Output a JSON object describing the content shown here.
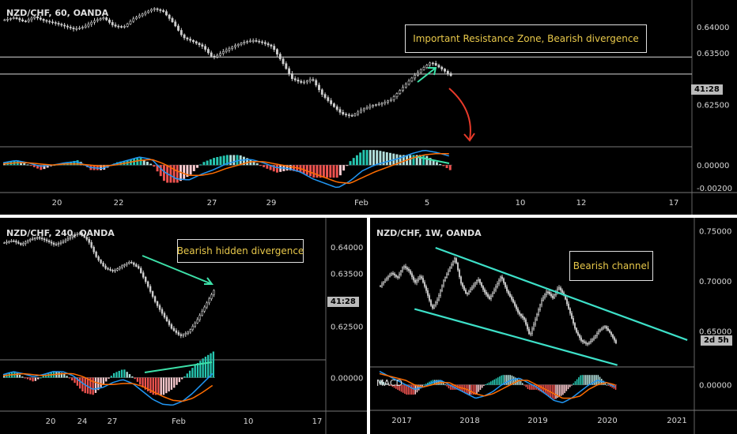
{
  "chart_data": [
    {
      "panel": "top",
      "type": "candlestick",
      "title": "NZD/CHF, 60, OANDA",
      "annotation": "Important Resistance Zone, Bearish divergence",
      "countdown_badge": "41:28",
      "price_ticks": [
        "0.64000",
        "0.63500",
        "0.62500"
      ],
      "macd_ticks": [
        "0.00000",
        "-0.00200"
      ],
      "x_ticks": [
        "20",
        "22",
        "27",
        "29",
        "Feb",
        "5",
        "10",
        "12",
        "17"
      ],
      "price_range": [
        0.617,
        0.644
      ],
      "macd_range": [
        -0.0024,
        0.0016
      ],
      "resistance_zone": [
        0.6342,
        0.6309
      ],
      "close_path": [
        0.6414,
        0.6418,
        0.641,
        0.642,
        0.6412,
        0.6408,
        0.6402,
        0.6396,
        0.64,
        0.6412,
        0.6418,
        0.6402,
        0.64,
        0.6416,
        0.6426,
        0.6436,
        0.643,
        0.6408,
        0.638,
        0.6372,
        0.6362,
        0.634,
        0.6352,
        0.6362,
        0.637,
        0.6374,
        0.637,
        0.6362,
        0.6332,
        0.63,
        0.6292,
        0.63,
        0.627,
        0.625,
        0.6232,
        0.6228,
        0.624,
        0.6248,
        0.6252,
        0.626,
        0.628,
        0.63,
        0.6318,
        0.6332,
        0.632,
        0.6306
      ],
      "macd_path": [
        0.0002,
        0.0004,
        0.0002,
        -0.0001,
        0.0,
        0.0002,
        0.0003,
        -0.0002,
        -0.0003,
        0.0001,
        0.0004,
        0.0007,
        0.0005,
        -0.0006,
        -0.0012,
        -0.0013,
        -0.0008,
        -0.0004,
        0.0001,
        0.0004,
        0.0005,
        0.0002,
        -0.0002,
        -0.0003,
        -0.0006,
        -0.0012,
        -0.0016,
        -0.002,
        -0.0014,
        -0.0005,
        0.0,
        0.0003,
        0.0006,
        0.001,
        0.0013,
        0.0011,
        0.0008
      ],
      "signal_path": [
        0.0001,
        0.0002,
        0.0002,
        0.0001,
        0.0,
        0.0001,
        0.0001,
        0.0,
        -0.0001,
        0.0,
        0.0002,
        0.0004,
        0.0005,
        0.0001,
        -0.0005,
        -0.0009,
        -0.0009,
        -0.0007,
        -0.0003,
        0.0,
        0.0003,
        0.0003,
        0.0001,
        -0.0001,
        -0.0003,
        -0.0007,
        -0.0011,
        -0.0015,
        -0.0016,
        -0.0011,
        -0.0006,
        -0.0002,
        0.0002,
        0.0006,
        0.0009,
        0.001,
        0.001
      ]
    },
    {
      "panel": "bottom-left",
      "type": "candlestick",
      "title": "NZD/CHF, 240, OANDA",
      "annotation": "Bearish hidden divergence",
      "countdown_badge": "41:28",
      "price_ticks": [
        "0.64000",
        "0.63500",
        "0.62500"
      ],
      "macd_ticks": [
        "0.00000"
      ],
      "x_ticks": [
        "20",
        "24",
        "27",
        "Feb",
        "10",
        "17"
      ],
      "price_range": [
        0.619,
        0.644
      ],
      "macd_range": [
        -0.003,
        0.0018
      ],
      "close_path": [
        0.6408,
        0.6412,
        0.6404,
        0.6414,
        0.6418,
        0.6412,
        0.6404,
        0.641,
        0.642,
        0.6426,
        0.6412,
        0.638,
        0.636,
        0.6354,
        0.6364,
        0.6372,
        0.636,
        0.633,
        0.6296,
        0.627,
        0.6245,
        0.6232,
        0.624,
        0.6262,
        0.629,
        0.6318
      ],
      "macd_path": [
        0.0003,
        0.0006,
        0.0004,
        0.0001,
        0.0003,
        0.0006,
        0.0006,
        0.0002,
        -0.0006,
        -0.0012,
        -0.001,
        -0.0005,
        -0.0002,
        -0.0006,
        -0.0014,
        -0.0022,
        -0.0027,
        -0.0028,
        -0.0024,
        -0.0016,
        -0.0006,
        0.0004
      ],
      "signal_path": [
        0.0002,
        0.0003,
        0.0004,
        0.0003,
        0.0002,
        0.0003,
        0.0004,
        0.0004,
        0.0001,
        -0.0004,
        -0.0007,
        -0.0007,
        -0.0006,
        -0.0006,
        -0.0009,
        -0.0014,
        -0.0019,
        -0.0023,
        -0.0024,
        -0.0021,
        -0.0015,
        -0.0008
      ]
    },
    {
      "panel": "bottom-right",
      "type": "candlestick",
      "title": "NZD/CHF, 1W, OANDA",
      "annotation": "Bearish channel",
      "countdown_badge": "2d 5h",
      "indicator_label": "MACD",
      "price_ticks": [
        "0.75000",
        "0.70000",
        "0.65000"
      ],
      "macd_ticks": [
        "0.00000"
      ],
      "x_ticks": [
        "2017",
        "2018",
        "2019",
        "2020",
        "2021"
      ],
      "price_range": [
        0.615,
        0.755
      ],
      "channel_upper": [
        [
          2017.6,
          0.733
        ],
        [
          2021.2,
          0.641
        ]
      ],
      "channel_lower": [
        [
          2017.3,
          0.672
        ],
        [
          2020.2,
          0.616
        ]
      ],
      "close_path": [
        0.695,
        0.702,
        0.708,
        0.703,
        0.715,
        0.71,
        0.698,
        0.705,
        0.69,
        0.672,
        0.682,
        0.7,
        0.712,
        0.723,
        0.698,
        0.686,
        0.694,
        0.702,
        0.69,
        0.682,
        0.693,
        0.705,
        0.69,
        0.68,
        0.668,
        0.662,
        0.645,
        0.662,
        0.68,
        0.69,
        0.683,
        0.694,
        0.685,
        0.668,
        0.65,
        0.64,
        0.637,
        0.642,
        0.65,
        0.655,
        0.648,
        0.638
      ],
      "macd_path": [
        0.006,
        0.004,
        0.002,
        0.0,
        -0.002,
        -0.001,
        0.001,
        0.002,
        0.0,
        -0.002,
        -0.004,
        -0.006,
        -0.005,
        -0.003,
        0.0,
        0.002,
        0.003,
        0.001,
        -0.001,
        -0.004,
        -0.007,
        -0.008,
        -0.006,
        -0.003,
        0.0,
        0.002,
        0.001,
        -0.001
      ],
      "signal_path": [
        0.005,
        0.004,
        0.003,
        0.002,
        0.0,
        -0.001,
        0.0,
        0.001,
        0.001,
        -0.001,
        -0.002,
        -0.004,
        -0.005,
        -0.004,
        -0.002,
        0.0,
        0.002,
        0.002,
        0.0,
        -0.002,
        -0.004,
        -0.006,
        -0.006,
        -0.005,
        -0.002,
        0.0,
        0.001,
        0.0
      ],
      "x_range": [
        2016.8,
        2021.3
      ]
    }
  ]
}
